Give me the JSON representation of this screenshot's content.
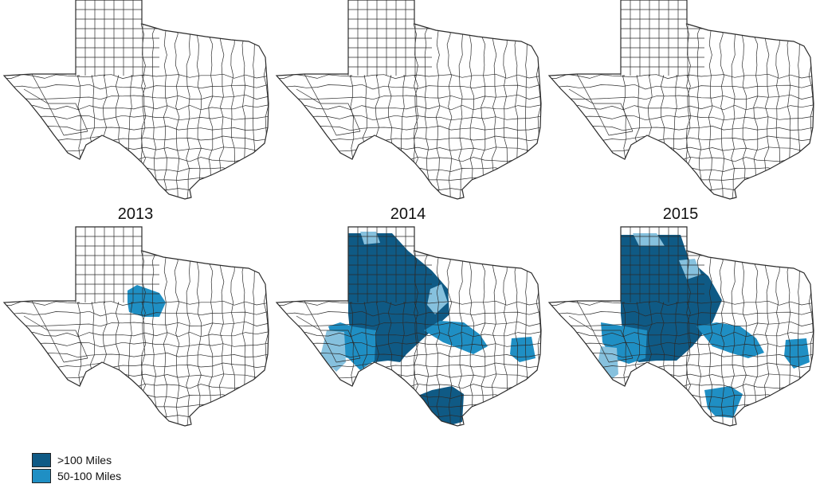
{
  "years": [
    "2013",
    "2014",
    "2015"
  ],
  "colors": {
    "outline": "#2b2b2b",
    "fill_none": "#ffffff",
    "over_100_miles": "#0f5a85",
    "50_100_miles": "#1f8fc4",
    "under_50_miles": "#86c1de"
  },
  "legend": [
    {
      "label": ">100 Miles",
      "color_key": "over_100_miles"
    },
    {
      "label": "50-100 Miles",
      "color_key": "50_100_miles"
    }
  ],
  "panels_bottom": [
    {
      "year": "2013",
      "regions": [
        {
          "level": "50_100_miles",
          "area": "north-central panhandle edge"
        }
      ]
    },
    {
      "year": "2014",
      "regions": [
        {
          "level": "over_100_miles",
          "area": "west central Texas"
        },
        {
          "level": "over_100_miles",
          "area": "south Texas coast"
        },
        {
          "level": "50_100_miles",
          "area": "central Texas"
        },
        {
          "level": "50_100_miles",
          "area": "east Texas"
        },
        {
          "level": "under_50_miles",
          "area": "far west Texas"
        }
      ]
    },
    {
      "year": "2015",
      "regions": [
        {
          "level": "over_100_miles",
          "area": "west central Texas"
        },
        {
          "level": "50_100_miles",
          "area": "central Texas"
        },
        {
          "level": "50_100_miles",
          "area": "east Texas"
        },
        {
          "level": "50_100_miles",
          "area": "south Texas coast"
        },
        {
          "level": "under_50_miles",
          "area": "far west Texas"
        }
      ]
    }
  ]
}
